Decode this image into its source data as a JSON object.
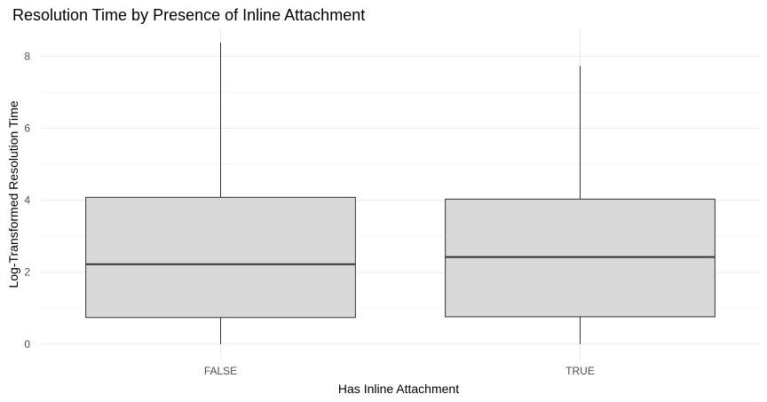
{
  "chart_data": {
    "type": "box",
    "title": "Resolution Time by Presence of Inline Attachment",
    "xlabel": "Has Inline Attachment",
    "ylabel": "Log-Transformed Resolution Time",
    "categories": [
      "FALSE",
      "TRUE"
    ],
    "ylim": [
      -0.4,
      8.75
    ],
    "yticks": [
      0,
      2,
      4,
      6,
      8
    ],
    "grid": true,
    "legend": "none",
    "box_fill": "#d9d9d9",
    "box_stroke": "#333333",
    "boxes": [
      {
        "category": "FALSE",
        "min": 0,
        "q1": 0.74,
        "median": 2.22,
        "q3": 4.08,
        "max": 8.38
      },
      {
        "category": "TRUE",
        "min": 0,
        "q1": 0.76,
        "median": 2.42,
        "q3": 4.03,
        "max": 7.73
      }
    ]
  }
}
